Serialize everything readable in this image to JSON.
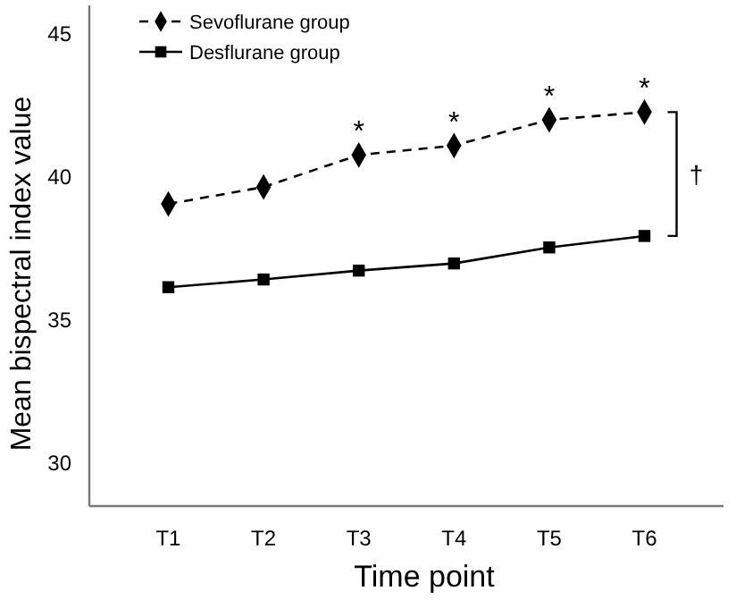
{
  "chart_data": {
    "type": "line",
    "xlabel": "Time point",
    "ylabel": "Mean bispectral index value",
    "categories": [
      "T1",
      "T2",
      "T3",
      "T4",
      "T5",
      "T6"
    ],
    "series": [
      {
        "name": "Sevoflurane group",
        "color": "#000000",
        "marker": "diamond",
        "line_style": "dashed",
        "values": [
          39.06,
          39.65,
          40.77,
          41.1,
          42.0,
          42.27
        ]
      },
      {
        "name": "Desflurane group",
        "color": "#000000",
        "marker": "square",
        "line_style": "solid",
        "values": [
          36.15,
          36.42,
          36.73,
          36.98,
          37.54,
          37.94
        ]
      }
    ],
    "ylim": [
      28.5,
      46
    ],
    "yticks": [
      30,
      35,
      40,
      45
    ],
    "grid": false,
    "legend": "top left",
    "annotations": [
      {
        "text": "*",
        "x": "T3",
        "y": 40.77
      },
      {
        "text": "*",
        "x": "T4",
        "y": 41.1
      },
      {
        "text": "*",
        "x": "T5",
        "y": 42.0
      },
      {
        "text": "*",
        "x": "T6",
        "y": 42.27
      },
      "†"
    ]
  }
}
